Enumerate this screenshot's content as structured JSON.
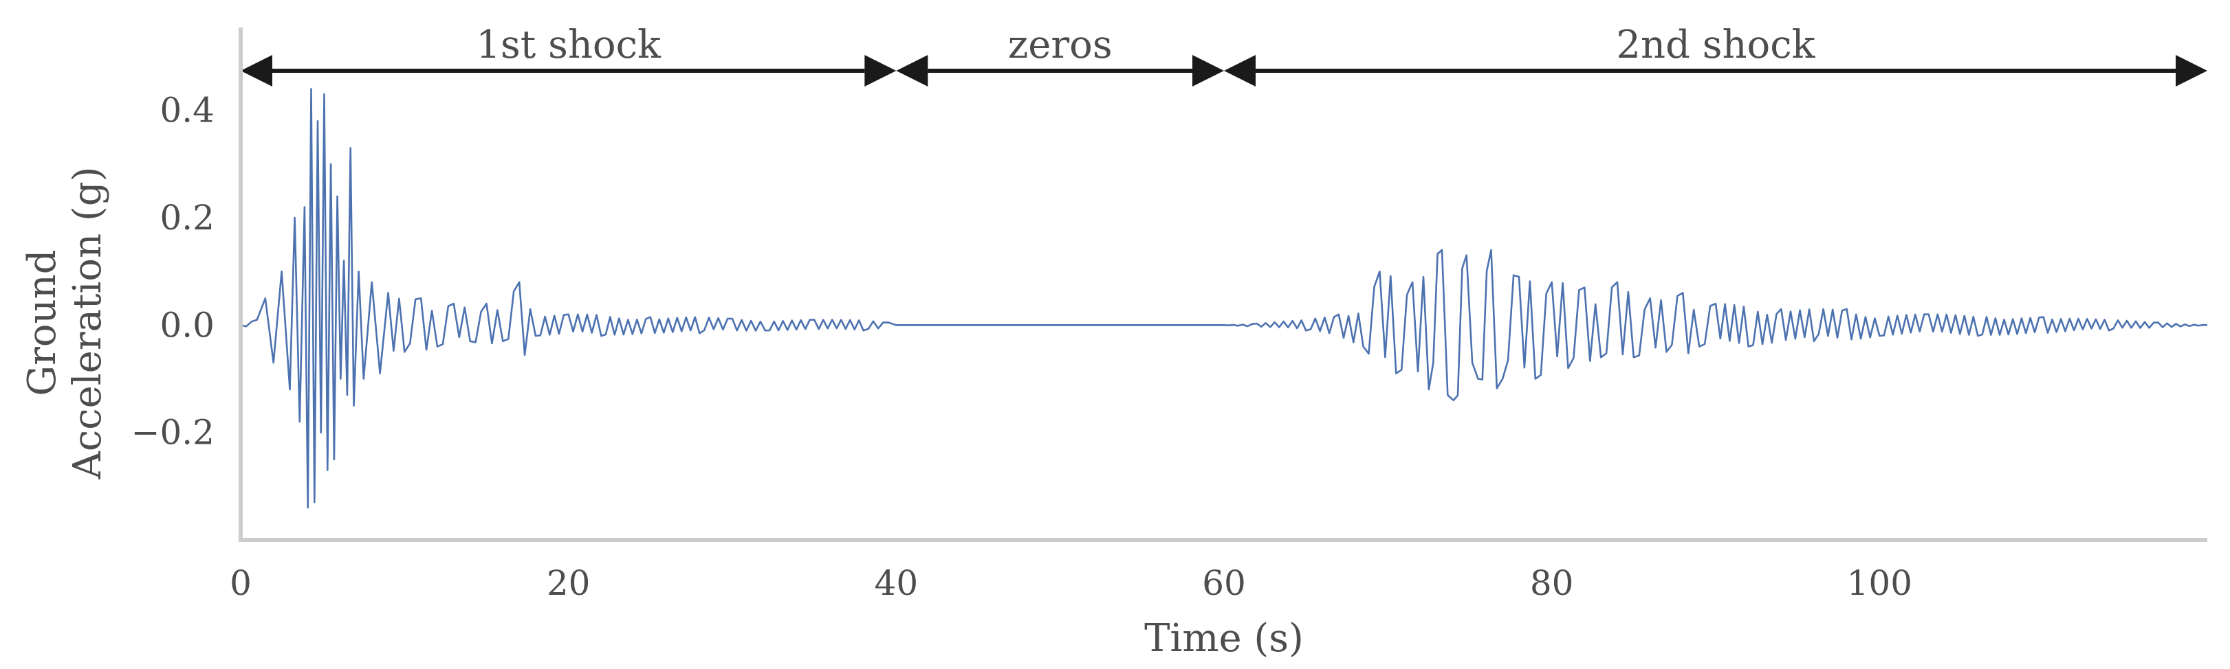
{
  "chart_data": {
    "type": "line",
    "xlabel": "Time (s)",
    "ylabel_lines": [
      "Ground",
      "Acceleration (g)"
    ],
    "xlim": [
      0,
      120
    ],
    "ylim": [
      -0.4,
      0.58
    ],
    "xticks": [
      0,
      20,
      40,
      60,
      80,
      100
    ],
    "yticks": [
      -0.2,
      0.0,
      0.2,
      0.4
    ],
    "grid": false,
    "segments": [
      {
        "label": "1st shock",
        "start": 0,
        "end": 40
      },
      {
        "label": "zeros",
        "start": 40,
        "end": 60
      },
      {
        "label": "2nd shock",
        "start": 60,
        "end": 120
      }
    ],
    "series": [
      {
        "color": "#4c72b0",
        "x": [
          0,
          1,
          1.5,
          2,
          2.5,
          3,
          3.3,
          3.6,
          3.9,
          4.1,
          4.3,
          4.5,
          4.7,
          4.9,
          5.1,
          5.3,
          5.5,
          5.7,
          5.9,
          6.1,
          6.3,
          6.5,
          6.7,
          6.9,
          7.2,
          7.5,
          8,
          8.5,
          9,
          10,
          11,
          12,
          13,
          14,
          15,
          16,
          17,
          18,
          20,
          22,
          25,
          28,
          30,
          32,
          35,
          38,
          39.5,
          40,
          50,
          60,
          62,
          65,
          67,
          68.5,
          69.5,
          70.5,
          71.5,
          72.5,
          73.3,
          74,
          74.8,
          75.5,
          76.3,
          77,
          78,
          79,
          80,
          81,
          82,
          83,
          84,
          85,
          86,
          87,
          88,
          89,
          90,
          92,
          94,
          96,
          98,
          100,
          103,
          106,
          110,
          114,
          117,
          120
        ],
        "y": [
          0,
          0.01,
          0.05,
          -0.07,
          0.1,
          -0.12,
          0.2,
          -0.18,
          0.22,
          -0.34,
          0.44,
          -0.33,
          0.38,
          -0.2,
          0.43,
          -0.27,
          0.3,
          -0.25,
          0.24,
          -0.1,
          0.12,
          -0.13,
          0.33,
          -0.15,
          0.1,
          -0.1,
          0.08,
          -0.09,
          0.06,
          -0.05,
          0.05,
          -0.04,
          0.04,
          -0.03,
          0.04,
          -0.03,
          0.08,
          -0.02,
          0.02,
          -0.02,
          0.015,
          -0.015,
          0.012,
          -0.01,
          0.01,
          -0.01,
          0.005,
          0,
          0,
          0,
          0.003,
          -0.01,
          0.02,
          -0.04,
          0.1,
          -0.09,
          0.08,
          -0.12,
          0.14,
          -0.14,
          0.13,
          -0.1,
          0.14,
          -0.1,
          0.09,
          -0.1,
          0.08,
          -0.08,
          0.07,
          -0.06,
          0.08,
          -0.06,
          0.05,
          -0.05,
          0.06,
          -0.04,
          0.04,
          -0.04,
          0.03,
          -0.03,
          0.03,
          -0.02,
          0.02,
          -0.02,
          0.015,
          -0.01,
          0.005,
          0
        ]
      }
    ]
  }
}
